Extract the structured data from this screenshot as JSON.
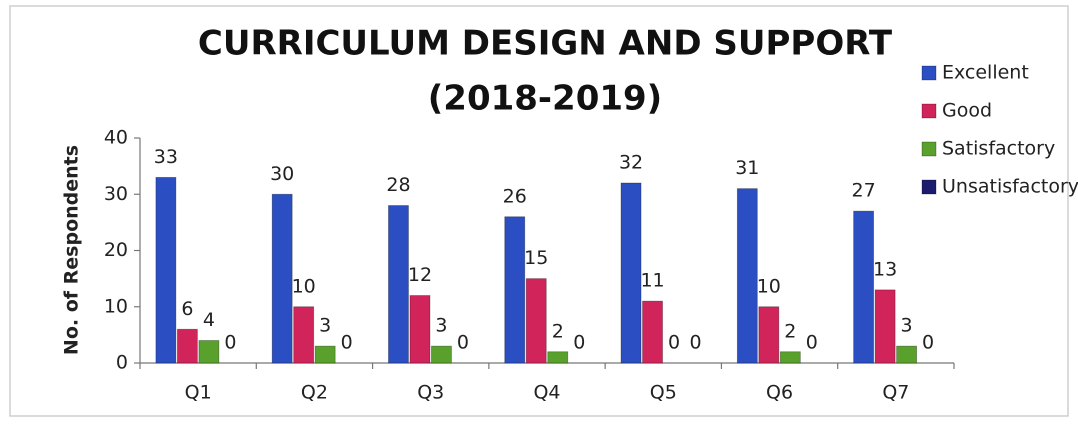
{
  "chart_data": {
    "type": "bar",
    "title": "CURRICULUM DESIGN AND SUPPORT",
    "subtitle": "(2018-2019)",
    "y_label": "No. of Respondents",
    "categories": [
      "Q1",
      "Q2",
      "Q3",
      "Q4",
      "Q5",
      "Q6",
      "Q7"
    ],
    "series": [
      {
        "name": "Excellent",
        "color": "#2b4fc2",
        "values": [
          33,
          30,
          28,
          26,
          32,
          31,
          27
        ]
      },
      {
        "name": "Good",
        "color": "#d0245a",
        "values": [
          6,
          10,
          12,
          15,
          11,
          10,
          13
        ]
      },
      {
        "name": "Satisfactory",
        "color": "#5aa02c",
        "values": [
          4,
          3,
          3,
          2,
          0,
          2,
          3
        ]
      },
      {
        "name": "Unsatisfactory",
        "color": "#1c1c6e",
        "values": [
          0,
          0,
          0,
          0,
          0,
          0,
          0
        ]
      }
    ],
    "ylim": [
      0,
      40
    ],
    "yticks": [
      0,
      10,
      20,
      30,
      40
    ],
    "grid": false,
    "legend": "right"
  }
}
